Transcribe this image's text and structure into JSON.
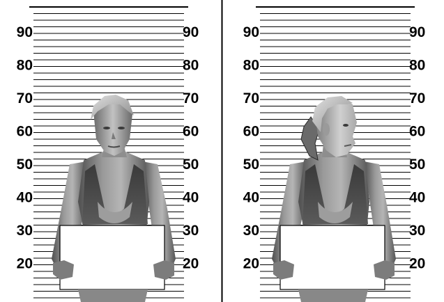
{
  "panels": [
    {
      "id": "front",
      "view": "front",
      "height_marks": [
        "90",
        "80",
        "70",
        "60",
        "50",
        "40",
        "30",
        "20"
      ],
      "placard_text": ""
    },
    {
      "id": "side",
      "view": "three-quarter",
      "height_marks": [
        "90",
        "80",
        "70",
        "60",
        "50",
        "40",
        "30",
        "20"
      ],
      "placard_text": ""
    }
  ],
  "colors": {
    "background": "#ffffff",
    "lines": "#000000",
    "skin_light": "#bdbdbd",
    "skin_mid": "#8a8a8a",
    "skin_dark": "#4a4a4a",
    "placard": "#ffffff"
  }
}
